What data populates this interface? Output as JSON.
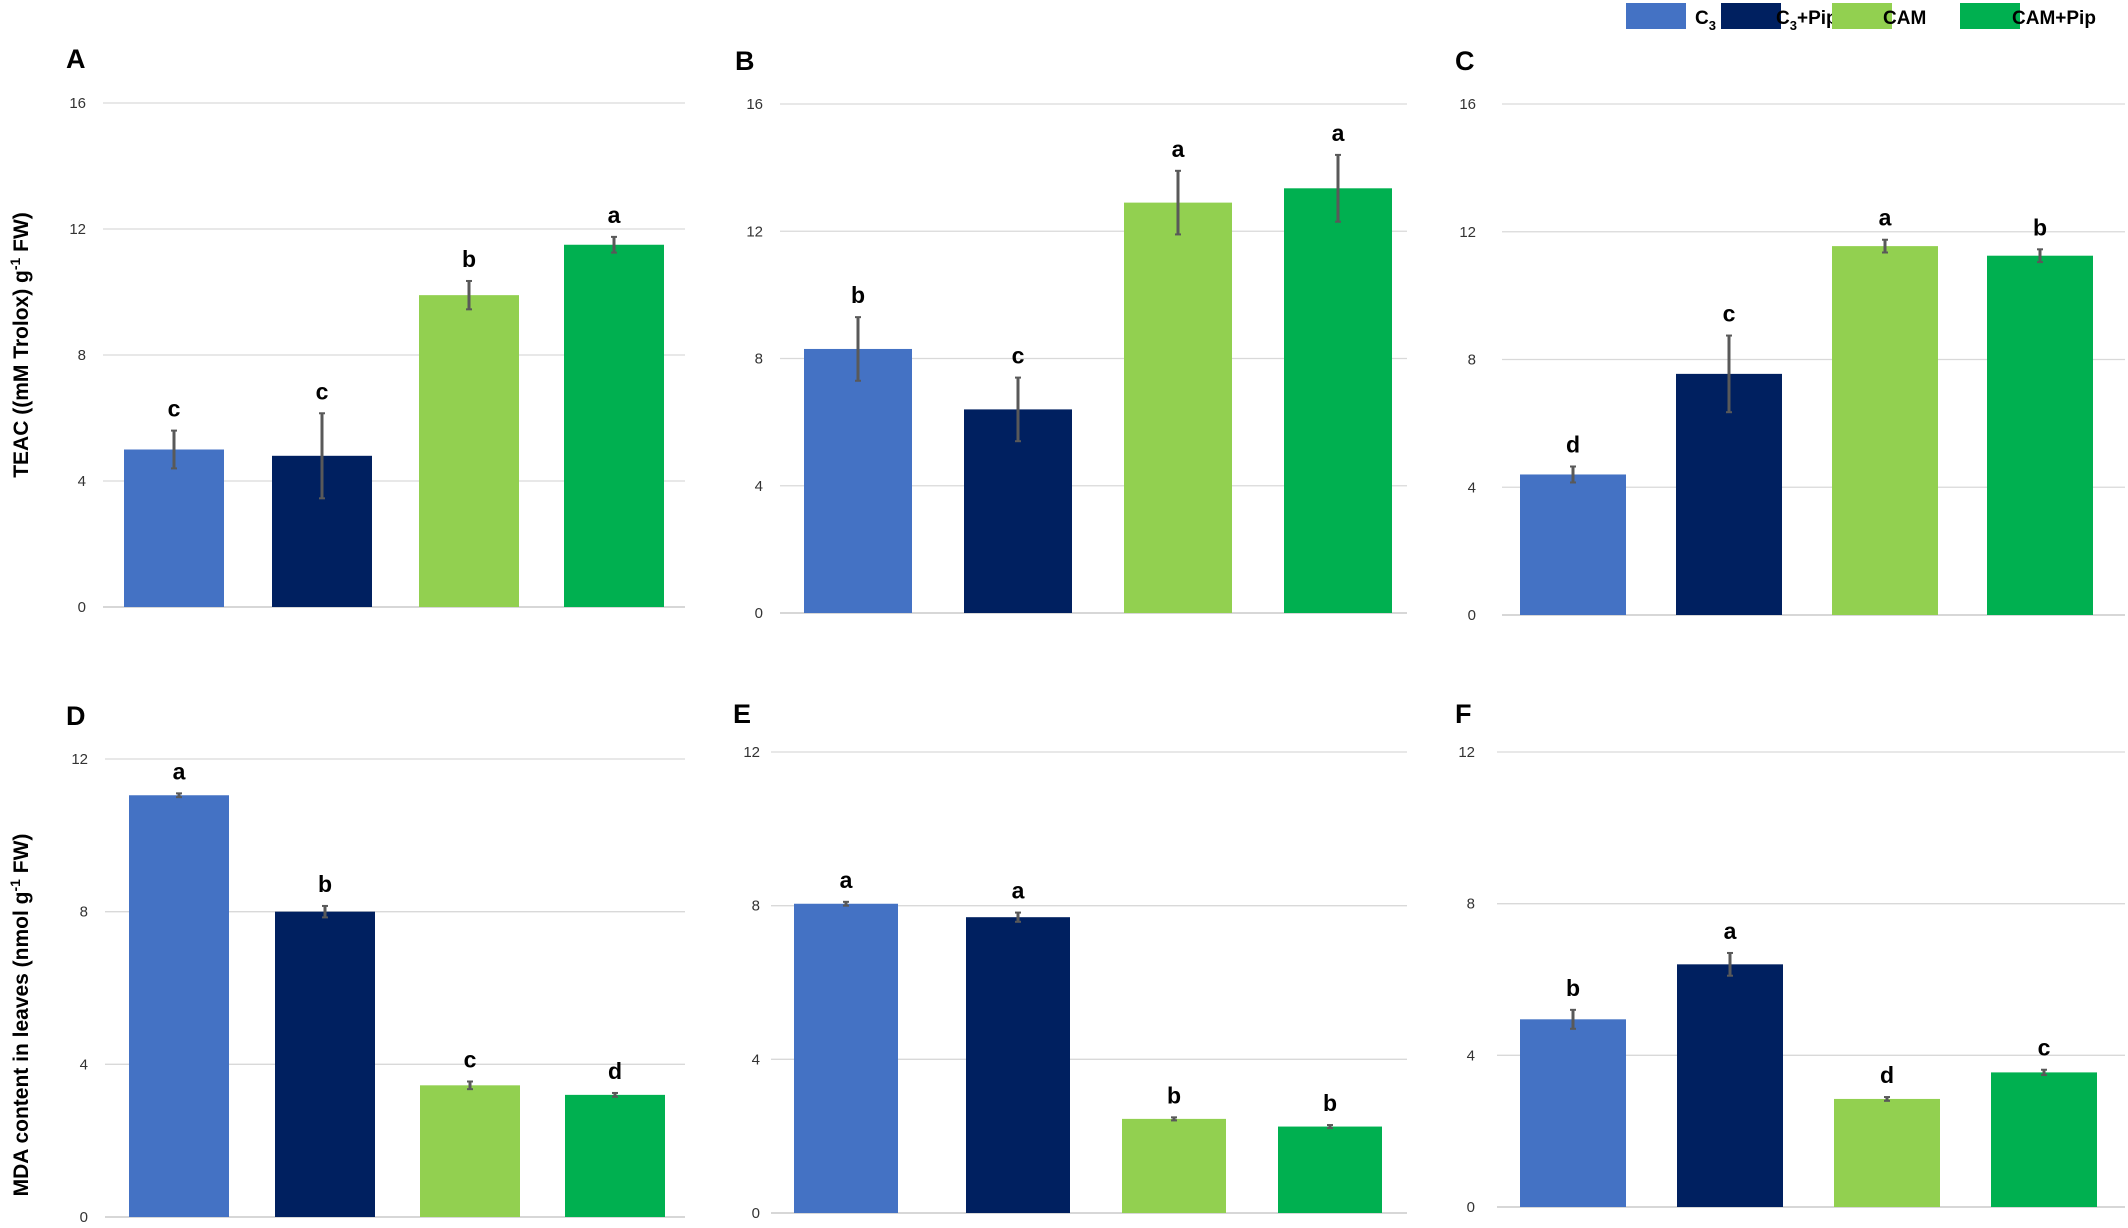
{
  "legend": [
    {
      "label": "C",
      "sub": "3",
      "suffix": "",
      "color": "#4472C4"
    },
    {
      "label": "C",
      "sub": "3",
      "suffix": "+Pip",
      "color": "#002060"
    },
    {
      "label": "CAM",
      "sub": "",
      "suffix": "",
      "color": "#92D050"
    },
    {
      "label": "CAM+Pip",
      "sub": "",
      "suffix": "",
      "color": "#00B050"
    }
  ],
  "ylabels": {
    "top": {
      "main": "TEAC  ((mM Trolox) g",
      "sup": "-1",
      "end": " FW)"
    },
    "bottom": {
      "main": "MDA content in leaves (nmol g",
      "sup": "-1",
      "end": " FW)"
    }
  },
  "chart_data": [
    {
      "panel": "A",
      "type": "bar",
      "categories": [
        "C3",
        "C3+Pip",
        "CAM",
        "CAM+Pip"
      ],
      "values": [
        5.0,
        4.8,
        9.9,
        11.5
      ],
      "errors": [
        0.6,
        1.35,
        0.45,
        0.25
      ],
      "sig": [
        "c",
        "c",
        "b",
        "a"
      ],
      "ylim": [
        0,
        16
      ],
      "yticks": [
        "0",
        "4",
        "8",
        "12",
        "16"
      ]
    },
    {
      "panel": "B",
      "type": "bar",
      "categories": [
        "C3",
        "C3+Pip",
        "CAM",
        "CAM+Pip"
      ],
      "values": [
        8.3,
        6.4,
        12.9,
        13.35
      ],
      "errors": [
        1.0,
        1.0,
        1.0,
        1.05
      ],
      "sig": [
        "b",
        "c",
        "a",
        "a"
      ],
      "ylim": [
        0,
        16
      ],
      "yticks": [
        "0",
        "4",
        "8",
        "12",
        "16"
      ]
    },
    {
      "panel": "C",
      "type": "bar",
      "categories": [
        "C3",
        "C3+Pip",
        "CAM",
        "CAM+Pip"
      ],
      "values": [
        4.4,
        7.55,
        11.55,
        11.25
      ],
      "errors": [
        0.25,
        1.2,
        0.2,
        0.2
      ],
      "sig": [
        "d",
        "c",
        "a",
        "b"
      ],
      "ylim": [
        0,
        16
      ],
      "yticks": [
        "0",
        "4",
        "8",
        "12",
        "16"
      ]
    },
    {
      "panel": "D",
      "type": "bar",
      "categories": [
        "C3",
        "C3+Pip",
        "CAM",
        "CAM+Pip"
      ],
      "values": [
        11.05,
        8.0,
        3.45,
        3.2
      ],
      "errors": [
        0.05,
        0.15,
        0.1,
        0.05
      ],
      "sig": [
        "a",
        "b",
        "c",
        "d"
      ],
      "ylim": [
        0,
        12
      ],
      "yticks": [
        "0",
        "4",
        "8",
        "12"
      ]
    },
    {
      "panel": "E",
      "type": "bar",
      "categories": [
        "C3",
        "C3+Pip",
        "CAM",
        "CAM+Pip"
      ],
      "values": [
        8.05,
        7.7,
        2.45,
        2.25
      ],
      "errors": [
        0.05,
        0.12,
        0.04,
        0.04
      ],
      "sig": [
        "a",
        "a",
        "b",
        "b"
      ],
      "ylim": [
        0,
        12
      ],
      "yticks": [
        "0",
        "4",
        "8",
        "12"
      ]
    },
    {
      "panel": "F",
      "type": "bar",
      "categories": [
        "C3",
        "C3+Pip",
        "CAM",
        "CAM+Pip"
      ],
      "values": [
        4.95,
        6.4,
        2.85,
        3.55
      ],
      "errors": [
        0.25,
        0.3,
        0.05,
        0.07
      ],
      "sig": [
        "b",
        "a",
        "d",
        "c"
      ],
      "ylim": [
        0,
        12
      ],
      "yticks": [
        "0",
        "4",
        "8",
        "12"
      ]
    }
  ]
}
